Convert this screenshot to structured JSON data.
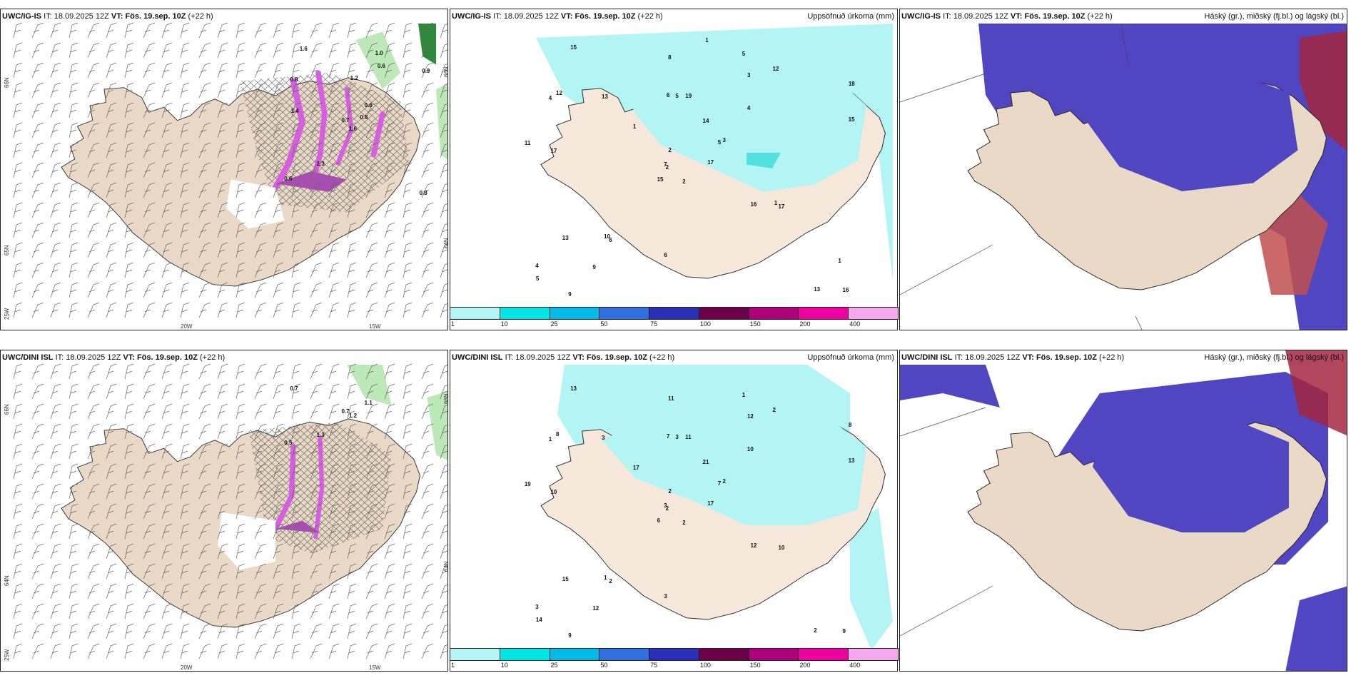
{
  "rows": [
    {
      "model": "UWC/IG-IS",
      "it_label": "IT:",
      "it_value": "18.09.2025 12Z",
      "vt_label": "VT:",
      "vt_value": "Fös. 19.sep. 10Z",
      "lead": "(+22 h)",
      "wind_numbers": [
        "1.6",
        "0.8",
        "0.7",
        "0.6",
        "0.6",
        "1.3",
        "1.0",
        "1.2",
        "0.6",
        "0.6",
        "1.6",
        "0.8",
        "1.4",
        "0.9"
      ],
      "precip_numbers": [
        "2",
        "4",
        "2",
        "4",
        "5",
        "6",
        "5",
        "19",
        "3",
        "17",
        "15",
        "16",
        "17",
        "18",
        "15",
        "4",
        "9",
        "6",
        "14",
        "13",
        "1",
        "5",
        "9",
        "5",
        "3",
        "17",
        "12",
        "8",
        "11",
        "16",
        "15",
        "7",
        "6",
        "2",
        "13",
        "12",
        "10",
        "13",
        "1",
        "1",
        "1"
      ]
    },
    {
      "model": "UWC/DINI ISL",
      "it_label": "IT:",
      "it_value": "18.09.2025 12Z",
      "vt_label": "VT:",
      "vt_value": "Fös. 19.sep. 10Z",
      "lead": "(+22 h)",
      "wind_numbers": [
        "1.2",
        "0.7",
        "0.7",
        "0.5",
        "1.1",
        "1.3"
      ],
      "precip_numbers": [
        "2",
        "1",
        "2",
        "3",
        "7",
        "2",
        "1",
        "11",
        "12",
        "17",
        "13",
        "9",
        "10",
        "8",
        "6",
        "10",
        "9",
        "7",
        "21",
        "15",
        "17",
        "14",
        "12",
        "3",
        "2",
        "10",
        "8",
        "11",
        "19",
        "12",
        "13",
        "3",
        "3",
        "2",
        "3",
        "2",
        "1",
        "2"
      ]
    }
  ],
  "precip_title": "Uppsöfnuð úrkoma (mm)",
  "cloud_title": "Háský (gr.), miðský (fj.bl.) og lágský (bl.)",
  "legend": {
    "colors": [
      "#b3f5f5",
      "#00e5e5",
      "#00bbe8",
      "#2f6fe0",
      "#2a2fb8",
      "#6e0049",
      "#ad007a",
      "#ee00a0",
      "#f5a8f0"
    ],
    "ticks": [
      "1",
      "10",
      "25",
      "50",
      "75",
      "100",
      "150",
      "200",
      "400"
    ]
  },
  "axes": {
    "lat_labels": [
      "66N",
      "65N",
      "64N",
      "25W"
    ],
    "lon_labels": [
      "20W",
      "15W"
    ]
  }
}
